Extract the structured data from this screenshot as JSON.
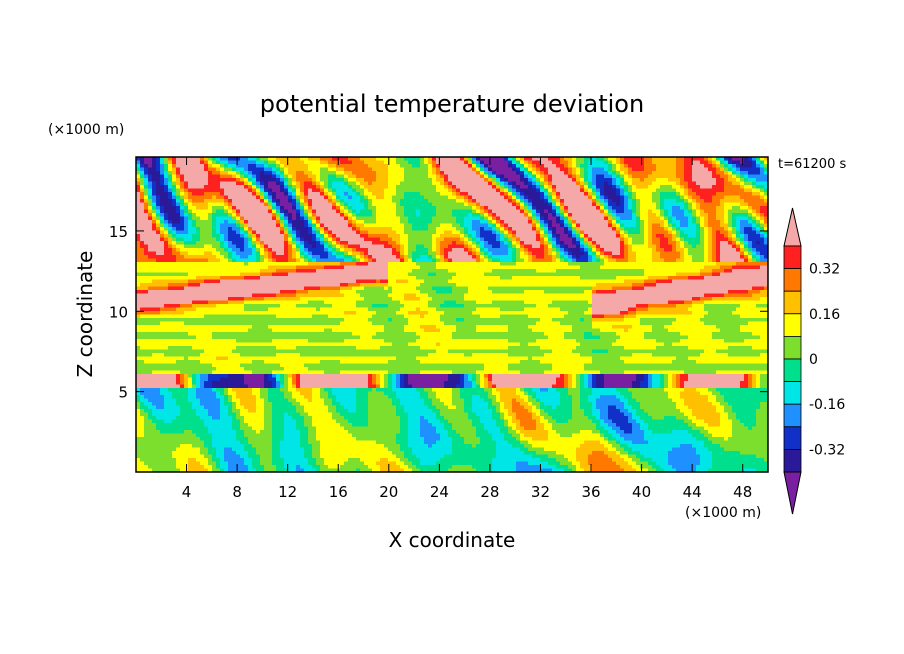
{
  "chart_data": {
    "type": "heatmap",
    "title": "potential temperature deviation",
    "xlabel": "X coordinate",
    "ylabel": "Z coordinate",
    "x_unit": "(×1000 m)",
    "z_unit": "(×1000 m)",
    "time_label": "t=61200 s",
    "xlim": [
      0,
      50
    ],
    "zlim": [
      0,
      19.6
    ],
    "x_ticks": [
      "4",
      "8",
      "12",
      "16",
      "20",
      "24",
      "28",
      "32",
      "36",
      "40",
      "44",
      "48"
    ],
    "z_ticks": [
      "5",
      "10",
      "15"
    ],
    "colorbar": {
      "levels": [
        -0.48,
        -0.4,
        -0.32,
        -0.24,
        -0.16,
        -0.08,
        0,
        0.08,
        0.16,
        0.24,
        0.32,
        0.4
      ],
      "labels": [
        "0.32",
        "0.16",
        "0",
        "-0.16",
        "-0.32"
      ],
      "colors": [
        "#7b1fa2",
        "#2a1a9a",
        "#1030c8",
        "#1e90ff",
        "#00e6e6",
        "#00e08c",
        "#7cdf2e",
        "#ffff00",
        "#ffc000",
        "#ff7800",
        "#ff2020",
        "#f4a8a8"
      ],
      "extend": "both"
    },
    "description_of_field": [
      {
        "region": "lower layer z 0-5",
        "character": "mostly -0.16 to +0.24, with wave-like oscillations and vertical plumes"
      },
      {
        "region": "inversion near z 5-6",
        "character": "alternating >0.4 and <-0.48 bands"
      },
      {
        "region": "middle z 6-13",
        "character": "horizontal bands near 0 with tilted >0.4 streaks"
      },
      {
        "region": "upper z 13-19.6",
        "character": "patchy mixed extreme values"
      }
    ]
  }
}
